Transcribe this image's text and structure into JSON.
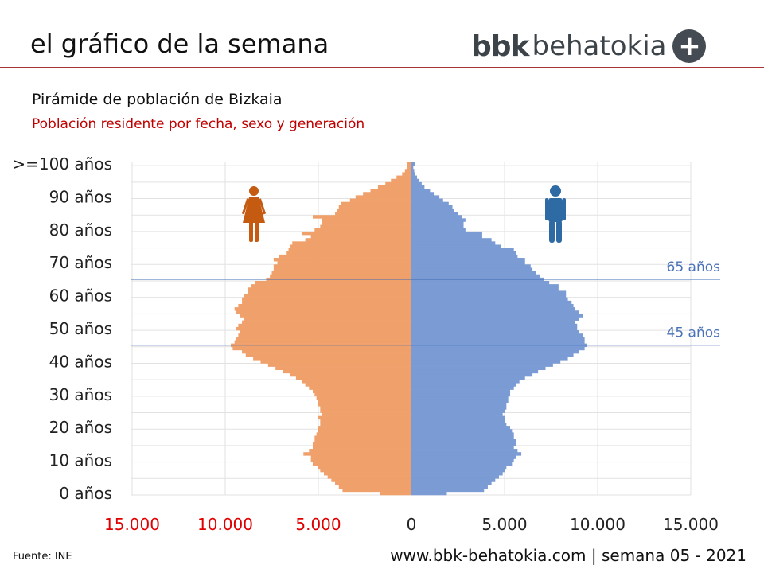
{
  "header": {
    "title": "el gráfico de la semana",
    "logo_bbk": "bbk",
    "logo_behatokia": "behatokia",
    "logo_plus": "+"
  },
  "chart_data": {
    "type": "bar",
    "orientation": "horizontal-population-pyramid",
    "title": "Pirámide de población de Bizkaia",
    "subtitle": "Población residente por fecha, sexo y generación",
    "age_min": 0,
    "age_max": 100,
    "y_tick_labels": [
      "0 años",
      "10 años",
      "20 años",
      "30 años",
      "40 años",
      "50 años",
      "60 años",
      "70 años",
      "80 años",
      "90 años",
      ">=100 años"
    ],
    "x_tick_labels_left": [
      "15.000",
      "10.000",
      "5.000"
    ],
    "x_tick_label_zero": "0",
    "x_tick_labels_right": [
      "5.000",
      "10.000",
      "15.000"
    ],
    "xlim": [
      -15000,
      15000
    ],
    "reference_lines": [
      {
        "age": 65,
        "label": "65 años"
      },
      {
        "age": 45,
        "label": "45 años"
      }
    ],
    "series": [
      {
        "name": "Mujeres",
        "side": "left",
        "color": "#f0a16b",
        "icon": "woman-icon",
        "icon_color": "#c55a11",
        "values": [
          1700,
          3700,
          3900,
          4100,
          4300,
          4500,
          4700,
          4900,
          5000,
          5300,
          5400,
          5400,
          5800,
          5500,
          5300,
          5300,
          5200,
          5200,
          5100,
          5000,
          5000,
          4900,
          4900,
          5000,
          4800,
          4900,
          4900,
          5000,
          5000,
          5100,
          5200,
          5300,
          5500,
          5700,
          5900,
          6200,
          6500,
          6900,
          7300,
          7700,
          8100,
          8500,
          8900,
          9100,
          9600,
          9700,
          9500,
          9400,
          9300,
          9200,
          9400,
          9300,
          9100,
          9000,
          9200,
          9400,
          9500,
          9300,
          9100,
          9100,
          9000,
          8800,
          8800,
          8600,
          8400,
          7800,
          7600,
          7500,
          7400,
          7400,
          7200,
          7400,
          7100,
          6700,
          6600,
          6500,
          6400,
          5700,
          5400,
          5900,
          5200,
          4900,
          4800,
          4800,
          5300,
          4100,
          4000,
          3900,
          3800,
          3300,
          3000,
          2600,
          2200,
          1800,
          1400,
          1100,
          800,
          500,
          350,
          250,
          250
        ]
      },
      {
        "name": "Hombres",
        "side": "right",
        "color": "#7a9bd4",
        "icon": "man-icon",
        "icon_color": "#2e6aa3",
        "values": [
          1900,
          3900,
          4100,
          4300,
          4500,
          4700,
          4900,
          5000,
          5100,
          5400,
          5500,
          5600,
          5900,
          5700,
          5500,
          5600,
          5600,
          5500,
          5500,
          5400,
          5300,
          5100,
          5000,
          5000,
          4900,
          5000,
          5100,
          5100,
          5200,
          5200,
          5300,
          5300,
          5500,
          5600,
          5800,
          6100,
          6500,
          6800,
          7200,
          7600,
          8000,
          8400,
          8700,
          9000,
          9300,
          9400,
          9300,
          9300,
          9200,
          9000,
          8900,
          8900,
          8800,
          9000,
          9200,
          9000,
          8800,
          8700,
          8600,
          8400,
          8300,
          8300,
          7900,
          7900,
          7400,
          7100,
          6900,
          6700,
          6500,
          6400,
          6100,
          6100,
          5700,
          5600,
          5500,
          4800,
          4500,
          4300,
          3800,
          3800,
          2900,
          2800,
          2800,
          2900,
          2700,
          2500,
          2300,
          2200,
          2000,
          1700,
          1500,
          1200,
          1000,
          700,
          550,
          400,
          300,
          200,
          150,
          100,
          200
        ]
      }
    ]
  },
  "footer": {
    "source": "Fuente:  INE",
    "site": "www.bbk-behatokia.com | semana 05 - 2021"
  }
}
